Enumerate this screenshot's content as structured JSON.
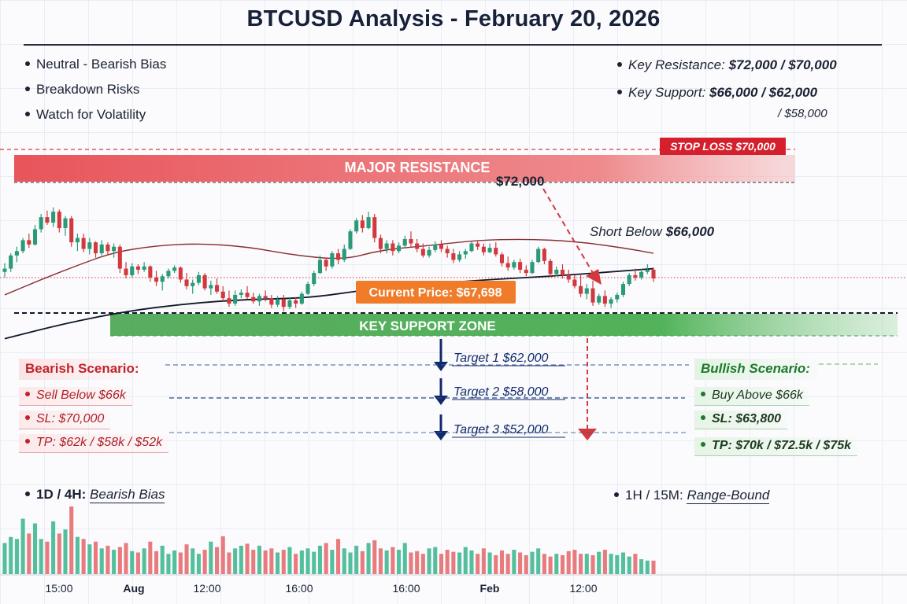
{
  "title": "BTCUSD Analysis - February 20, 2026",
  "bias_list": [
    "Neutral - Bearish Bias",
    "Breakdown Risks",
    "Watch for Volatility"
  ],
  "levels": {
    "resistance_label": "Key Resistance:",
    "resistance_value": "$72,000 / $70,000",
    "support_label": "Key Support:",
    "support_value": "$66,000 / $62,000",
    "support_value_2": "/ $58,000"
  },
  "chart_labels": {
    "stop_loss": "STOP LOSS $70,000",
    "major_resistance": "MAJOR RESISTANCE",
    "resistance_price": "$72,000",
    "short_below_prefix": "Short Below",
    "short_below_value": "$66,000",
    "current_price": "Current Price: $67,698",
    "key_support_zone": "KEY SUPPORT ZONE",
    "target_1": "Target 1 $62,000",
    "target_2": "Target 2 $58,000",
    "target_3": "Target 3 $52,000"
  },
  "bearish": {
    "title": "Bearish Scenario:",
    "items": [
      "Sell Below $66k",
      "SL: $70,000",
      "TP: $62k / $58k / $52k"
    ]
  },
  "bullish": {
    "title": "Bullish Scenario:",
    "items": [
      "Buy Above $66k",
      "SL: $63,800",
      "TP: $70k / $72.5k / $75k"
    ]
  },
  "timeframes": {
    "left_label": "1D / 4H:",
    "left_value": "Bearish Bias",
    "right_label": "1H / 15M:",
    "right_value": "Range-Bound"
  },
  "colors": {
    "up": "#2a9a78",
    "down": "#d2393f",
    "vol_up": "#53bf9d",
    "vol_down": "#e87b7e",
    "resistance_band": "#e8555b",
    "support_band": "#3d9f45",
    "navy": "#102a6b",
    "ma_fast": "#8a2e33",
    "ma_slow": "#101828",
    "current_price_badge": "#f07b28"
  },
  "chart_data": {
    "type": "candlestick",
    "x_tick_labels": [
      "15:00",
      "Aug",
      "12:00",
      "16:00",
      "16:00",
      "Feb",
      "12:00"
    ],
    "ohlc": [
      [
        67950,
        68350,
        67700,
        68100
      ],
      [
        68100,
        68800,
        67950,
        68700
      ],
      [
        68700,
        69100,
        68400,
        68900
      ],
      [
        68900,
        69500,
        68800,
        69400
      ],
      [
        69400,
        69700,
        69050,
        69200
      ],
      [
        69200,
        70100,
        69150,
        69900
      ],
      [
        69900,
        70600,
        69750,
        70450
      ],
      [
        70450,
        70750,
        70100,
        70200
      ],
      [
        70200,
        70900,
        70000,
        70700
      ],
      [
        70700,
        70800,
        69750,
        69950
      ],
      [
        69950,
        70500,
        69600,
        70400
      ],
      [
        70400,
        70500,
        69100,
        69300
      ],
      [
        69300,
        69700,
        68900,
        69500
      ],
      [
        69500,
        69700,
        68850,
        69000
      ],
      [
        69000,
        69500,
        68750,
        69300
      ],
      [
        69300,
        69350,
        68600,
        68800
      ],
      [
        68800,
        69400,
        68700,
        69200
      ],
      [
        69200,
        69300,
        68700,
        68900
      ],
      [
        68900,
        69250,
        68600,
        69100
      ],
      [
        69100,
        69200,
        67900,
        68100
      ],
      [
        68100,
        68400,
        67650,
        67800
      ],
      [
        67800,
        68350,
        67700,
        68200
      ],
      [
        68200,
        68300,
        67850,
        68050
      ],
      [
        68050,
        68400,
        67950,
        68200
      ],
      [
        68200,
        68250,
        67500,
        67700
      ],
      [
        67700,
        68000,
        67300,
        67500
      ],
      [
        67500,
        67850,
        67100,
        67750
      ],
      [
        67750,
        68100,
        67650,
        68000
      ],
      [
        68000,
        68250,
        67900,
        68150
      ],
      [
        68150,
        68200,
        67450,
        67600
      ],
      [
        67600,
        67900,
        67150,
        67300
      ],
      [
        67300,
        67600,
        66950,
        67450
      ],
      [
        67450,
        67950,
        67350,
        67800
      ],
      [
        67800,
        67900,
        67100,
        67200
      ],
      [
        67200,
        67550,
        66900,
        67350
      ],
      [
        67350,
        67650,
        66950,
        67050
      ],
      [
        67050,
        67300,
        66600,
        66750
      ],
      [
        66750,
        67100,
        66350,
        66500
      ],
      [
        66500,
        67100,
        66400,
        66900
      ],
      [
        66900,
        67150,
        66750,
        67000
      ],
      [
        67000,
        67300,
        66700,
        66800
      ],
      [
        66800,
        67000,
        66500,
        66600
      ],
      [
        66600,
        66950,
        66400,
        66850
      ],
      [
        66850,
        67100,
        66600,
        66750
      ],
      [
        66750,
        66900,
        66300,
        66450
      ],
      [
        66450,
        66850,
        66350,
        66700
      ],
      [
        66700,
        66900,
        66150,
        66350
      ],
      [
        66350,
        66800,
        66250,
        66650
      ],
      [
        66650,
        66800,
        66300,
        66500
      ],
      [
        66500,
        67050,
        66450,
        66950
      ],
      [
        66950,
        67500,
        66900,
        67400
      ],
      [
        67400,
        68000,
        67300,
        67900
      ],
      [
        67900,
        68700,
        67850,
        68500
      ],
      [
        68500,
        68600,
        68000,
        68200
      ],
      [
        68200,
        68900,
        68100,
        68800
      ],
      [
        68800,
        69000,
        68300,
        68500
      ],
      [
        68500,
        69200,
        68400,
        69000
      ],
      [
        69000,
        69900,
        68950,
        69800
      ],
      [
        69800,
        70400,
        69700,
        70300
      ],
      [
        70300,
        70550,
        69750,
        69950
      ],
      [
        69950,
        70700,
        69900,
        70450
      ],
      [
        70450,
        70600,
        69300,
        69500
      ],
      [
        69500,
        69650,
        68800,
        69000
      ],
      [
        69000,
        69400,
        68800,
        69250
      ],
      [
        69250,
        69400,
        68700,
        68900
      ],
      [
        68900,
        69300,
        68800,
        69150
      ],
      [
        69150,
        69600,
        69050,
        69450
      ],
      [
        69450,
        69800,
        69050,
        69250
      ],
      [
        69250,
        69450,
        68850,
        69000
      ],
      [
        69000,
        69250,
        68600,
        68700
      ],
      [
        68700,
        69100,
        68600,
        68950
      ],
      [
        68950,
        69350,
        68850,
        69200
      ],
      [
        69200,
        69400,
        68850,
        69000
      ],
      [
        69000,
        69150,
        68600,
        68800
      ],
      [
        68800,
        69000,
        68350,
        68500
      ],
      [
        68500,
        68900,
        68400,
        68750
      ],
      [
        68750,
        69000,
        68550,
        68900
      ],
      [
        68900,
        69350,
        68850,
        69250
      ],
      [
        69250,
        69400,
        68950,
        69100
      ],
      [
        69100,
        69250,
        68700,
        68850
      ],
      [
        68850,
        69250,
        68800,
        69050
      ],
      [
        69050,
        69300,
        68650,
        68750
      ],
      [
        68750,
        68850,
        68200,
        68350
      ],
      [
        68350,
        68650,
        68000,
        68150
      ],
      [
        68150,
        68500,
        68050,
        68400
      ],
      [
        68400,
        68550,
        67900,
        68050
      ],
      [
        68050,
        68250,
        67750,
        67900
      ],
      [
        67900,
        68500,
        67850,
        68400
      ],
      [
        68400,
        69100,
        68350,
        69000
      ],
      [
        69000,
        69050,
        68300,
        68450
      ],
      [
        68450,
        68550,
        67700,
        67850
      ],
      [
        67850,
        68200,
        67750,
        68050
      ],
      [
        68050,
        68300,
        67650,
        67800
      ],
      [
        67800,
        68050,
        67450,
        67600
      ],
      [
        67600,
        67800,
        67200,
        67300
      ],
      [
        67300,
        67800,
        66800,
        66950
      ],
      [
        66950,
        67400,
        66700,
        67200
      ],
      [
        67200,
        67550,
        66400,
        66550
      ],
      [
        66550,
        66950,
        66450,
        66850
      ],
      [
        66850,
        67100,
        66350,
        66500
      ],
      [
        66500,
        66800,
        66300,
        66700
      ],
      [
        66700,
        67000,
        66550,
        66900
      ],
      [
        66900,
        67500,
        66800,
        67400
      ],
      [
        67400,
        67900,
        67300,
        67800
      ],
      [
        67800,
        68100,
        67550,
        67700
      ],
      [
        67700,
        68100,
        67600,
        67950
      ],
      [
        67950,
        68300,
        67850,
        68050
      ],
      [
        68050,
        68150,
        67500,
        67650
      ]
    ],
    "volume": [
      0.46,
      0.55,
      0.52,
      0.82,
      0.6,
      0.75,
      0.52,
      0.48,
      0.78,
      0.6,
      0.66,
      1.0,
      0.55,
      0.52,
      0.44,
      0.48,
      0.38,
      0.42,
      0.36,
      0.4,
      0.46,
      0.34,
      0.32,
      0.38,
      0.48,
      0.34,
      0.42,
      0.3,
      0.35,
      0.32,
      0.44,
      0.38,
      0.3,
      0.36,
      0.48,
      0.4,
      0.56,
      0.32,
      0.38,
      0.42,
      0.45,
      0.36,
      0.42,
      0.35,
      0.38,
      0.32,
      0.36,
      0.4,
      0.3,
      0.35,
      0.38,
      0.33,
      0.42,
      0.46,
      0.36,
      0.52,
      0.38,
      0.32,
      0.42,
      0.34,
      0.46,
      0.5,
      0.38,
      0.35,
      0.4,
      0.36,
      0.46,
      0.32,
      0.34,
      0.3,
      0.38,
      0.4,
      0.3,
      0.36,
      0.33,
      0.32,
      0.4,
      0.35,
      0.3,
      0.38,
      0.32,
      0.28,
      0.35,
      0.3,
      0.36,
      0.32,
      0.28,
      0.33,
      0.38,
      0.3,
      0.26,
      0.3,
      0.28,
      0.34,
      0.36,
      0.3,
      0.3,
      0.28,
      0.33,
      0.36,
      0.3,
      0.28,
      0.32,
      0.26,
      0.3,
      0.22,
      0.2,
      0.2
    ],
    "ma_fast": [
      [
        0,
        66900
      ],
      [
        6,
        67600
      ],
      [
        12,
        68250
      ],
      [
        18,
        68850
      ],
      [
        25,
        69150
      ],
      [
        32,
        69250
      ],
      [
        40,
        69100
      ],
      [
        48,
        68700
      ],
      [
        56,
        68500
      ],
      [
        62,
        68950
      ],
      [
        70,
        69150
      ],
      [
        78,
        69400
      ],
      [
        86,
        69450
      ],
      [
        94,
        69350
      ],
      [
        102,
        69050
      ],
      [
        107,
        68800
      ]
    ],
    "ma_slow": [
      [
        0,
        64900
      ],
      [
        10,
        65600
      ],
      [
        20,
        66150
      ],
      [
        30,
        66500
      ],
      [
        40,
        66700
      ],
      [
        50,
        66750
      ],
      [
        60,
        67150
      ],
      [
        70,
        67400
      ],
      [
        80,
        67600
      ],
      [
        90,
        67750
      ],
      [
        100,
        67950
      ],
      [
        107,
        68100
      ]
    ],
    "levels": {
      "stop_loss": 70000,
      "resistance": 70000,
      "current": 67698,
      "support_top": 66000
    }
  }
}
